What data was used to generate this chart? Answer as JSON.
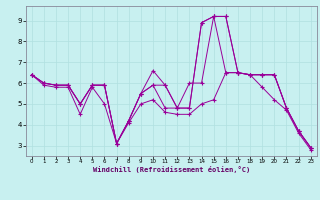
{
  "xlabel": "Windchill (Refroidissement éolien,°C)",
  "bg_color": "#c8f0f0",
  "line_color": "#990099",
  "grid_color": "#b0e0e0",
  "xlim": [
    -0.5,
    23.5
  ],
  "ylim": [
    2.5,
    9.7
  ],
  "yticks": [
    3,
    4,
    5,
    6,
    7,
    8,
    9
  ],
  "xticks": [
    0,
    1,
    2,
    3,
    4,
    5,
    6,
    7,
    8,
    9,
    10,
    11,
    12,
    13,
    14,
    15,
    16,
    17,
    18,
    19,
    20,
    21,
    22,
    23
  ],
  "series": [
    [
      6.4,
      6.0,
      5.9,
      5.9,
      5.0,
      5.9,
      5.9,
      3.1,
      4.2,
      5.5,
      6.6,
      5.9,
      4.8,
      4.8,
      8.9,
      9.2,
      9.2,
      6.5,
      6.4,
      6.4,
      6.4,
      4.8,
      3.7,
      2.9
    ],
    [
      6.4,
      6.0,
      5.9,
      5.9,
      5.0,
      5.9,
      5.9,
      3.1,
      4.2,
      5.5,
      5.9,
      5.9,
      4.8,
      6.0,
      6.0,
      9.2,
      6.5,
      6.5,
      6.4,
      6.4,
      6.4,
      4.8,
      3.7,
      2.9
    ],
    [
      6.4,
      6.0,
      5.9,
      5.9,
      5.0,
      5.9,
      5.9,
      3.1,
      4.2,
      5.5,
      5.9,
      4.8,
      4.8,
      4.8,
      8.9,
      9.2,
      9.2,
      6.5,
      6.4,
      6.4,
      6.4,
      4.8,
      3.7,
      2.9
    ],
    [
      6.4,
      5.9,
      5.8,
      5.8,
      4.5,
      5.8,
      5.0,
      3.1,
      4.1,
      5.0,
      5.2,
      4.6,
      4.5,
      4.5,
      5.0,
      5.2,
      6.5,
      6.5,
      6.4,
      5.8,
      5.2,
      4.7,
      3.6,
      2.8
    ]
  ]
}
